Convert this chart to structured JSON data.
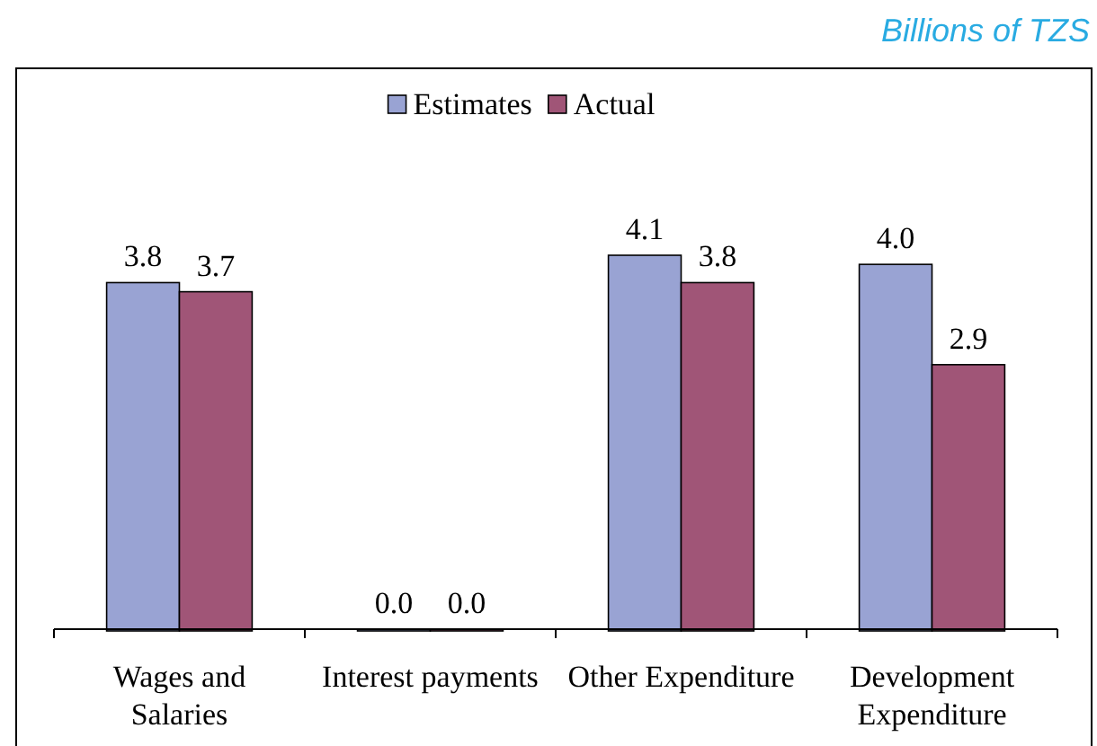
{
  "chart_data": {
    "type": "bar",
    "subtitle": "Billions of TZS",
    "categories": [
      "Wages and Salaries",
      "Interest payments",
      "Other Expenditure",
      "Development Expenditure"
    ],
    "series": [
      {
        "name": "Estimates",
        "color": "#99a3d3",
        "values": [
          3.8,
          0.0,
          4.1,
          4.0
        ],
        "value_labels": [
          "3.8",
          "0.0",
          "4.1",
          "4.0"
        ]
      },
      {
        "name": "Actual",
        "color": "#a05577",
        "values": [
          3.7,
          0.0,
          3.8,
          2.9
        ],
        "value_labels": [
          "3.7",
          "0.0",
          "3.8",
          "2.9"
        ]
      }
    ],
    "legend": "top"
  }
}
